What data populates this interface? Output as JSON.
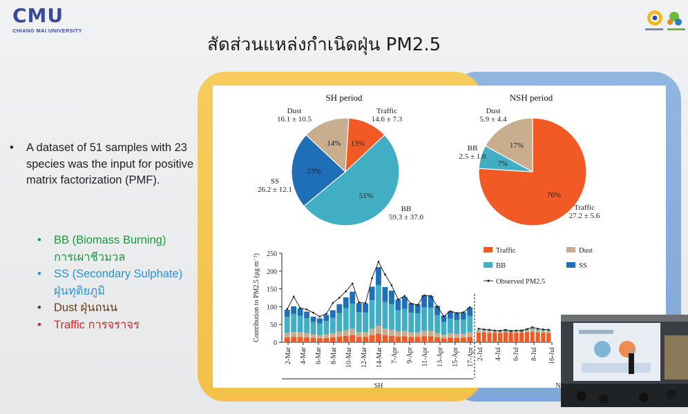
{
  "header": {
    "logo_main": "CMU",
    "logo_sub": "CHIANG MAI UNIVERSITY",
    "title": "สัดส่วนแหล่งกำเนิดฝุ่น PM2.5"
  },
  "bullets": {
    "main": "A dataset of 51 samples with 23 species was the input for positive matrix factorization (PMF).",
    "sub": [
      {
        "text": "BB (Biomass Burning)",
        "thai": "การเผาชีวมวล",
        "color": "#1c9a3c"
      },
      {
        "text": "SS (Secondary Sulphate)",
        "thai": "ฝุ่นทุติยภูมิ",
        "color": "#2a92d6"
      },
      {
        "text": "Dust ฝุ่นถนน",
        "thai": "",
        "color": "#6a3a1c"
      },
      {
        "text": "Traffic การจราจร",
        "thai": "",
        "color": "#d62828"
      }
    ]
  },
  "chart_data": [
    {
      "type": "pie",
      "title": "SH period",
      "slices": [
        {
          "name": "Traffic",
          "percent": 13,
          "label": "13%",
          "value_label": "14.6 ± 7.3",
          "color": "#f15a24"
        },
        {
          "name": "BB",
          "percent": 51,
          "label": "51%",
          "value_label": "59.3 ± 37.0",
          "color": "#41aec4"
        },
        {
          "name": "SS",
          "percent": 23,
          "label": "23%",
          "value_label": "26.2 ± 12.1",
          "color": "#1e6fb8"
        },
        {
          "name": "Dust",
          "percent": 14,
          "label": "14%",
          "value_label": "16.1 ± 10.5",
          "color": "#c8ad8f"
        }
      ]
    },
    {
      "type": "pie",
      "title": "NSH period",
      "slices": [
        {
          "name": "Traffic",
          "percent": 76,
          "label": "76%",
          "value_label": "27.2 ± 5.6",
          "color": "#f15a24"
        },
        {
          "name": "BB",
          "percent": 7,
          "label": "7%",
          "value_label": "2.5 ± 1.6",
          "color": "#41aec4"
        },
        {
          "name": "Dust",
          "percent": 17,
          "label": "17%",
          "value_label": "5.9 ± 4.4",
          "color": "#c8ad8f"
        }
      ]
    },
    {
      "type": "bar",
      "stacked": true,
      "ylabel": "Contribution to PM2.5 (μg m⁻³)",
      "ylim": [
        0,
        250
      ],
      "yticks": [
        0,
        50,
        100,
        150,
        200,
        250
      ],
      "period_labels": [
        "SH",
        "N"
      ],
      "x_tick_labels": [
        "2-Mar",
        "4-Mar",
        "6-Mar",
        "8-Mar",
        "10-Mar",
        "12-Mar",
        "14-Mar",
        "7-Apr",
        "9-Apr",
        "11-Apr",
        "13-Apr",
        "15-Apr",
        "17-Apr",
        "2-Jul",
        "4-Jul",
        "6-Jul",
        "8-Jul",
        "16-Jul"
      ],
      "legend": [
        "Traffic",
        "Dust",
        "BB",
        "SS",
        "Observed PM2.5"
      ],
      "colors": {
        "Traffic": "#f15a24",
        "Dust": "#c8ad8f",
        "BB": "#41aec4",
        "SS": "#1e6fb8",
        "Observed": "#222222"
      },
      "series_order": [
        "Traffic",
        "Dust",
        "BB",
        "SS"
      ],
      "sh_bars": [
        {
          "Traffic": 14,
          "Dust": 12,
          "BB": 45,
          "SS": 20,
          "Observed": 93
        },
        {
          "Traffic": 15,
          "Dust": 14,
          "BB": 50,
          "SS": 22,
          "Observed": 128
        },
        {
          "Traffic": 15,
          "Dust": 13,
          "BB": 46,
          "SS": 21,
          "Observed": 96
        },
        {
          "Traffic": 14,
          "Dust": 12,
          "BB": 42,
          "SS": 18,
          "Observed": 92
        },
        {
          "Traffic": 12,
          "Dust": 10,
          "BB": 35,
          "SS": 15,
          "Observed": 83
        },
        {
          "Traffic": 11,
          "Dust": 9,
          "BB": 33,
          "SS": 14,
          "Observed": 72
        },
        {
          "Traffic": 12,
          "Dust": 10,
          "BB": 38,
          "SS": 17,
          "Observed": 80
        },
        {
          "Traffic": 14,
          "Dust": 12,
          "BB": 43,
          "SS": 21,
          "Observed": 110
        },
        {
          "Traffic": 16,
          "Dust": 14,
          "BB": 52,
          "SS": 25,
          "Observed": 125
        },
        {
          "Traffic": 18,
          "Dust": 16,
          "BB": 62,
          "SS": 30,
          "Observed": 143
        },
        {
          "Traffic": 20,
          "Dust": 18,
          "BB": 70,
          "SS": 34,
          "Observed": 165
        },
        {
          "Traffic": 15,
          "Dust": 14,
          "BB": 55,
          "SS": 26,
          "Observed": 112
        },
        {
          "Traffic": 15,
          "Dust": 14,
          "BB": 54,
          "SS": 26,
          "Observed": 110
        },
        {
          "Traffic": 20,
          "Dust": 18,
          "BB": 80,
          "SS": 38,
          "Observed": 180
        },
        {
          "Traffic": 24,
          "Dust": 22,
          "BB": 115,
          "SS": 50,
          "Observed": 226
        },
        {
          "Traffic": 20,
          "Dust": 18,
          "BB": 75,
          "SS": 42,
          "Observed": 190
        },
        {
          "Traffic": 18,
          "Dust": 17,
          "BB": 72,
          "SS": 38,
          "Observed": 160
        },
        {
          "Traffic": 16,
          "Dust": 14,
          "BB": 60,
          "SS": 30,
          "Observed": 120
        },
        {
          "Traffic": 17,
          "Dust": 15,
          "BB": 62,
          "SS": 33,
          "Observed": 130
        },
        {
          "Traffic": 15,
          "Dust": 13,
          "BB": 55,
          "SS": 27,
          "Observed": 108
        },
        {
          "Traffic": 15,
          "Dust": 13,
          "BB": 53,
          "SS": 26,
          "Observed": 105
        },
        {
          "Traffic": 17,
          "Dust": 15,
          "BB": 66,
          "SS": 34,
          "Observed": 132
        },
        {
          "Traffic": 17,
          "Dust": 15,
          "BB": 65,
          "SS": 33,
          "Observed": 130
        },
        {
          "Traffic": 14,
          "Dust": 12,
          "BB": 50,
          "SS": 26,
          "Observed": 100
        },
        {
          "Traffic": 11,
          "Dust": 10,
          "BB": 36,
          "SS": 18,
          "Observed": 73
        },
        {
          "Traffic": 13,
          "Dust": 12,
          "BB": 42,
          "SS": 20,
          "Observed": 87
        },
        {
          "Traffic": 12,
          "Dust": 11,
          "BB": 40,
          "SS": 19,
          "Observed": 82
        },
        {
          "Traffic": 13,
          "Dust": 11,
          "BB": 40,
          "SS": 20,
          "Observed": 84
        },
        {
          "Traffic": 15,
          "Dust": 13,
          "BB": 46,
          "SS": 24,
          "Observed": 98
        }
      ],
      "nsh_bars": [
        {
          "Traffic": 27,
          "Dust": 6,
          "BB": 2,
          "SS": 0,
          "Observed": 38
        },
        {
          "Traffic": 28,
          "Dust": 6,
          "BB": 2,
          "SS": 0,
          "Observed": 36
        },
        {
          "Traffic": 26,
          "Dust": 6,
          "BB": 3,
          "SS": 0,
          "Observed": 35
        },
        {
          "Traffic": 27,
          "Dust": 5,
          "BB": 2,
          "SS": 0,
          "Observed": 33
        },
        {
          "Traffic": 26,
          "Dust": 6,
          "BB": 2,
          "SS": 0,
          "Observed": 32
        },
        {
          "Traffic": 28,
          "Dust": 6,
          "BB": 3,
          "SS": 0,
          "Observed": 34
        },
        {
          "Traffic": 27,
          "Dust": 6,
          "BB": 2,
          "SS": 0,
          "Observed": 31
        },
        {
          "Traffic": 26,
          "Dust": 5,
          "BB": 2,
          "SS": 0,
          "Observed": 33
        },
        {
          "Traffic": 27,
          "Dust": 6,
          "BB": 3,
          "SS": 0,
          "Observed": 32
        },
        {
          "Traffic": 28,
          "Dust": 7,
          "BB": 3,
          "SS": 0,
          "Observed": 37
        },
        {
          "Traffic": 29,
          "Dust": 7,
          "BB": 3,
          "SS": 0,
          "Observed": 42
        },
        {
          "Traffic": 28,
          "Dust": 6,
          "BB": 2,
          "SS": 0,
          "Observed": 38
        },
        {
          "Traffic": 27,
          "Dust": 6,
          "BB": 2,
          "SS": 0,
          "Observed": 36
        },
        {
          "Traffic": 26,
          "Dust": 6,
          "BB": 3,
          "SS": 0,
          "Observed": 35
        }
      ]
    }
  ]
}
